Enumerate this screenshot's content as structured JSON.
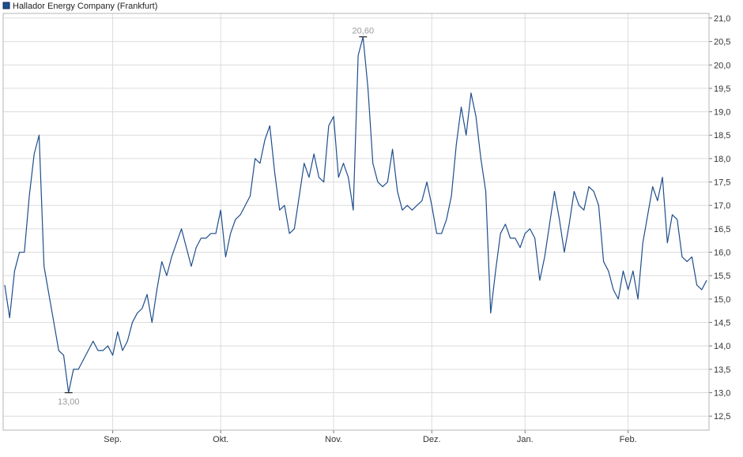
{
  "chart_data": {
    "type": "line",
    "title": "",
    "legend": {
      "entries": [
        "Hallador Energy Company (Frankfurt)"
      ],
      "placement": "top-left"
    },
    "xlabel": "",
    "ylabel": "",
    "ylim": [
      12.2,
      21.1
    ],
    "y_ticks": [
      12.5,
      13.0,
      13.5,
      14.0,
      14.5,
      15.0,
      15.5,
      16.0,
      16.5,
      17.0,
      17.5,
      18.0,
      18.5,
      19.0,
      19.5,
      20.0,
      20.5,
      21.0
    ],
    "y_tick_labels": [
      "12,5",
      "13,0",
      "13,5",
      "14,0",
      "14,5",
      "15,0",
      "15,5",
      "16,0",
      "16,5",
      "17,0",
      "17,5",
      "18,0",
      "18,5",
      "19,0",
      "19,5",
      "20,0",
      "20,5",
      "21,0"
    ],
    "y_axis_position": "right",
    "x_ticks": [
      {
        "label": "Sep.",
        "index": 22
      },
      {
        "label": "Okt.",
        "index": 44
      },
      {
        "label": "Nov.",
        "index": 67
      },
      {
        "label": "Dez.",
        "index": 87
      },
      {
        "label": "Jan.",
        "index": 106
      },
      {
        "label": "Feb.",
        "index": 127
      }
    ],
    "grid": true,
    "series": [
      {
        "name": "Hallador Energy Company (Frankfurt)",
        "color": "#1f4e8c",
        "values": [
          15.3,
          14.6,
          15.6,
          16.0,
          16.0,
          17.2,
          18.1,
          18.5,
          15.7,
          15.1,
          14.5,
          13.9,
          13.8,
          13.0,
          13.5,
          13.5,
          13.7,
          13.9,
          14.1,
          13.9,
          13.9,
          14.0,
          13.8,
          14.3,
          13.9,
          14.1,
          14.5,
          14.7,
          14.8,
          15.1,
          14.5,
          15.2,
          15.8,
          15.5,
          15.9,
          16.2,
          16.5,
          16.1,
          15.7,
          16.1,
          16.3,
          16.3,
          16.4,
          16.4,
          16.9,
          15.9,
          16.4,
          16.7,
          16.8,
          17.0,
          17.2,
          18.0,
          17.9,
          18.4,
          18.7,
          17.7,
          16.9,
          17.0,
          16.4,
          16.5,
          17.2,
          17.9,
          17.6,
          18.1,
          17.6,
          17.5,
          18.7,
          18.9,
          17.6,
          17.9,
          17.6,
          16.9,
          20.2,
          20.6,
          19.5,
          17.9,
          17.5,
          17.4,
          17.5,
          18.2,
          17.3,
          16.9,
          17.0,
          16.9,
          17.0,
          17.1,
          17.5,
          17.0,
          16.4,
          16.4,
          16.7,
          17.2,
          18.3,
          19.1,
          18.5,
          19.4,
          18.9,
          18.0,
          17.3,
          14.7,
          15.6,
          16.4,
          16.6,
          16.3,
          16.3,
          16.1,
          16.4,
          16.5,
          16.3,
          15.4,
          15.9,
          16.6,
          17.3,
          16.7,
          16.0,
          16.6,
          17.3,
          17.0,
          16.9,
          17.4,
          17.3,
          17.0,
          15.8,
          15.6,
          15.2,
          15.0,
          15.6,
          15.2,
          15.6,
          15.0,
          16.2,
          16.8,
          17.4,
          17.1,
          17.6,
          16.2,
          16.8,
          16.7,
          15.9,
          15.8,
          15.9,
          15.3,
          15.2,
          15.4
        ]
      }
    ],
    "annotations": [
      {
        "text": "20,60",
        "index": 73,
        "value": 20.6,
        "position": "above"
      },
      {
        "text": "13,00",
        "index": 13,
        "value": 13.0,
        "position": "below"
      }
    ]
  }
}
